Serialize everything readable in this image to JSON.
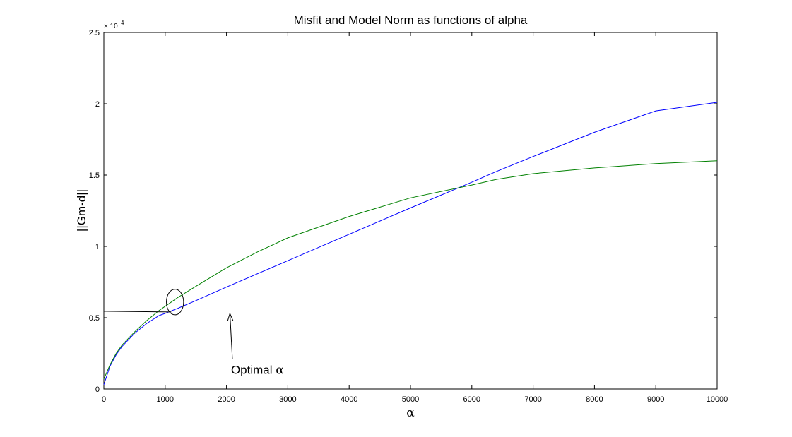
{
  "chart_data": {
    "type": "line",
    "title": "Misfit and Model Norm as functions of alpha",
    "xlabel": "α",
    "ylabel": "||Gm-d||",
    "xlim": [
      0,
      10000
    ],
    "ylim": [
      0,
      25000
    ],
    "x_ticks": [
      0,
      1000,
      2000,
      3000,
      4000,
      5000,
      6000,
      7000,
      8000,
      9000,
      10000
    ],
    "x_tick_labels": [
      "0",
      "1000",
      "2000",
      "3000",
      "4000",
      "5000",
      "6000",
      "7000",
      "8000",
      "9000",
      "10000"
    ],
    "y_ticks": [
      0,
      5000,
      10000,
      15000,
      20000,
      25000
    ],
    "y_tick_labels": [
      "0",
      "0.5",
      "1",
      "1.5",
      "2",
      "2.5"
    ],
    "y_multiplier": {
      "base": "× 10",
      "exponent": "4"
    },
    "grid": false,
    "series": [
      {
        "color": "#0000ff",
        "x": [
          0,
          100,
          200,
          300,
          500,
          700,
          900,
          1000,
          1100,
          1200,
          1500,
          2000,
          3000,
          4000,
          5000,
          6000,
          6400,
          7000,
          8000,
          9000,
          10000
        ],
        "y": [
          300,
          1600,
          2400,
          3000,
          3900,
          4600,
          5150,
          5300,
          5480,
          5650,
          6200,
          7150,
          9000,
          10850,
          12700,
          14500,
          15250,
          16300,
          18000,
          19500,
          20100
        ]
      },
      {
        "color": "#008000",
        "x": [
          0,
          100,
          200,
          300,
          500,
          700,
          900,
          1000,
          1100,
          1200,
          1500,
          2000,
          2500,
          3000,
          4000,
          5000,
          6000,
          6400,
          7000,
          8000,
          9000,
          10000
        ],
        "y": [
          700,
          1700,
          2500,
          3100,
          4000,
          4800,
          5500,
          5800,
          6100,
          6400,
          7200,
          8500,
          9600,
          10600,
          12100,
          13400,
          14300,
          14700,
          15100,
          15500,
          15800,
          16000
        ]
      }
    ],
    "annotation": {
      "text": "Optimal ",
      "symbol": "α",
      "point": [
        1180,
        5400
      ],
      "text_pos": [
        2050,
        1700
      ],
      "ellipse_center": [
        1160,
        6100
      ],
      "ellipse_radii": [
        140,
        900
      ],
      "hline_y": 5450,
      "hline_x": [
        0,
        1100
      ]
    }
  }
}
